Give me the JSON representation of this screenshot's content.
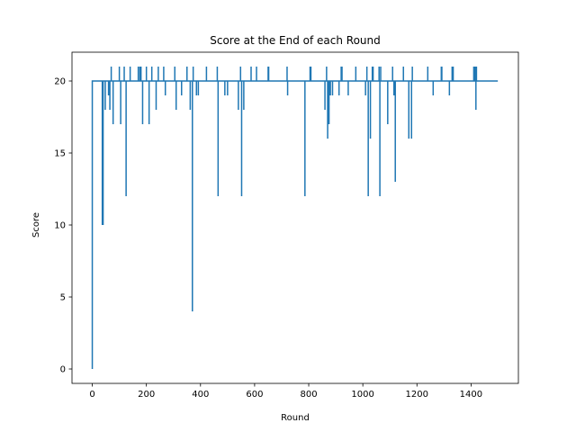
{
  "chart_data": {
    "type": "line",
    "title": "Score at the End of each Round",
    "xlabel": "Round",
    "ylabel": "Score",
    "xlim": [
      -75,
      1575
    ],
    "ylim": [
      -1,
      22
    ],
    "xticks": [
      0,
      200,
      400,
      600,
      800,
      1000,
      1200,
      1400
    ],
    "yticks": [
      0,
      5,
      10,
      15,
      20
    ],
    "grid": false,
    "color": "#1f77b4",
    "baseline": 20,
    "start": {
      "x": 0,
      "y": 0
    },
    "end_x": 1499,
    "deviations": [
      [
        37,
        10
      ],
      [
        40,
        10
      ],
      [
        45,
        20
      ],
      [
        48,
        18
      ],
      [
        55,
        20
      ],
      [
        60,
        19
      ],
      [
        65,
        18
      ],
      [
        70,
        21
      ],
      [
        77,
        17
      ],
      [
        85,
        20
      ],
      [
        100,
        21
      ],
      [
        105,
        17
      ],
      [
        118,
        21
      ],
      [
        125,
        12
      ],
      [
        140,
        21
      ],
      [
        170,
        21
      ],
      [
        176,
        21
      ],
      [
        180,
        21
      ],
      [
        186,
        17
      ],
      [
        200,
        21
      ],
      [
        210,
        17
      ],
      [
        220,
        21
      ],
      [
        236,
        18
      ],
      [
        244,
        21
      ],
      [
        264,
        21
      ],
      [
        270,
        19
      ],
      [
        305,
        21
      ],
      [
        310,
        18
      ],
      [
        330,
        19
      ],
      [
        350,
        21
      ],
      [
        362,
        18
      ],
      [
        370,
        4
      ],
      [
        373,
        21
      ],
      [
        385,
        19
      ],
      [
        392,
        19
      ],
      [
        400,
        20
      ],
      [
        422,
        21
      ],
      [
        462,
        21
      ],
      [
        465,
        12
      ],
      [
        490,
        19
      ],
      [
        500,
        19
      ],
      [
        540,
        18
      ],
      [
        548,
        21
      ],
      [
        552,
        12
      ],
      [
        560,
        18
      ],
      [
        587,
        21
      ],
      [
        607,
        21
      ],
      [
        650,
        21
      ],
      [
        652,
        21
      ],
      [
        720,
        21
      ],
      [
        722,
        19
      ],
      [
        786,
        12
      ],
      [
        805,
        21
      ],
      [
        808,
        21
      ],
      [
        860,
        18
      ],
      [
        866,
        21
      ],
      [
        870,
        16
      ],
      [
        875,
        17
      ],
      [
        880,
        19
      ],
      [
        888,
        19
      ],
      [
        900,
        20
      ],
      [
        912,
        19
      ],
      [
        920,
        21
      ],
      [
        923,
        21
      ],
      [
        946,
        19
      ],
      [
        974,
        21
      ],
      [
        1000,
        20
      ],
      [
        1010,
        19
      ],
      [
        1015,
        21
      ],
      [
        1020,
        12
      ],
      [
        1028,
        16
      ],
      [
        1035,
        21
      ],
      [
        1038,
        21
      ],
      [
        1060,
        21
      ],
      [
        1063,
        12
      ],
      [
        1066,
        21
      ],
      [
        1092,
        17
      ],
      [
        1110,
        21
      ],
      [
        1115,
        19
      ],
      [
        1120,
        13
      ],
      [
        1150,
        21
      ],
      [
        1170,
        16
      ],
      [
        1180,
        16
      ],
      [
        1183,
        21
      ],
      [
        1240,
        21
      ],
      [
        1260,
        19
      ],
      [
        1290,
        21
      ],
      [
        1292,
        21
      ],
      [
        1320,
        19
      ],
      [
        1330,
        21
      ],
      [
        1334,
        21
      ],
      [
        1410,
        21
      ],
      [
        1415,
        21
      ],
      [
        1418,
        18
      ],
      [
        1420,
        21
      ]
    ]
  }
}
